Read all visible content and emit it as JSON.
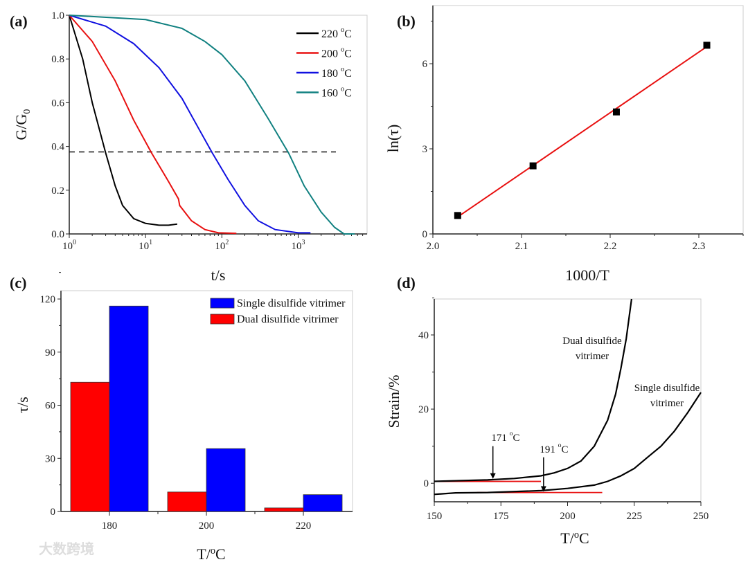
{
  "watermark": "大数跨境",
  "chart_data": [
    {
      "panel": "(a)",
      "type": "line",
      "xlabel": "t/s",
      "ylabel": "G/G0",
      "xscale": "log",
      "xlim": [
        1,
        8000
      ],
      "ylim": [
        0,
        1.0
      ],
      "xticks": [
        {
          "v": 1,
          "label": "10",
          "exp": "0"
        },
        {
          "v": 10,
          "label": "10",
          "exp": "1"
        },
        {
          "v": 100,
          "label": "10",
          "exp": "2"
        },
        {
          "v": 1000,
          "label": "10",
          "exp": "3"
        }
      ],
      "yticks": [
        0,
        0.2,
        0.4,
        0.6,
        0.8,
        1.0
      ],
      "ytick_labels": [
        "0.0",
        "0.2",
        "0.4",
        "0.6",
        "0.8",
        "1.0"
      ],
      "reference_line": {
        "y": 0.375,
        "style": "dashed"
      },
      "legend_position": "top-right",
      "series": [
        {
          "name": "220 °C",
          "color": "#000000",
          "x": [
            1,
            1.5,
            2,
            3,
            4,
            5,
            7,
            10,
            15,
            20,
            26
          ],
          "y": [
            1,
            0.8,
            0.6,
            0.37,
            0.22,
            0.13,
            0.07,
            0.048,
            0.04,
            0.04,
            0.045
          ]
        },
        {
          "name": "200 °C",
          "color": "#e81010",
          "x": [
            1,
            2,
            4,
            7,
            12,
            20,
            27,
            28,
            40,
            60,
            90,
            155
          ],
          "y": [
            1,
            0.88,
            0.7,
            0.52,
            0.37,
            0.24,
            0.16,
            0.13,
            0.06,
            0.02,
            0.005,
            0.003
          ]
        },
        {
          "name": "180 °C",
          "color": "#1010e0",
          "x": [
            1,
            3,
            7,
            15,
            30,
            50,
            75,
            120,
            200,
            300,
            500,
            1000,
            1450
          ],
          "y": [
            1,
            0.95,
            0.87,
            0.76,
            0.62,
            0.48,
            0.37,
            0.25,
            0.13,
            0.06,
            0.02,
            0.005,
            0.005
          ]
        },
        {
          "name": "160 °C",
          "color": "#108080",
          "x": [
            1,
            10,
            30,
            60,
            100,
            200,
            400,
            750,
            1200,
            2000,
            3000,
            4000,
            5500
          ],
          "y": [
            1,
            0.98,
            0.94,
            0.88,
            0.82,
            0.7,
            0.53,
            0.37,
            0.22,
            0.1,
            0.03,
            0.0,
            0.0
          ]
        }
      ]
    },
    {
      "panel": "(b)",
      "type": "scatter",
      "xlabel": "1000/T",
      "ylabel": "ln(τ)",
      "xlim": [
        2.0,
        2.35
      ],
      "ylim": [
        0,
        8.05
      ],
      "xticks": [
        2.0,
        2.1,
        2.2,
        2.3
      ],
      "xtick_labels": [
        "2.0",
        "2.1",
        "2.2",
        "2.3"
      ],
      "yticks": [
        0,
        3,
        6
      ],
      "ytick_labels": [
        "0",
        "3",
        "6"
      ],
      "points": {
        "x": [
          2.028,
          2.113,
          2.207,
          2.309
        ],
        "y": [
          0.65,
          2.4,
          4.3,
          6.65
        ],
        "color": "#000000"
      },
      "fit": {
        "x": [
          2.028,
          2.309
        ],
        "y": [
          0.6,
          6.6
        ],
        "color": "#e81010"
      }
    },
    {
      "panel": "(c)",
      "type": "bar",
      "xlabel": "T/°C",
      "ylabel": "τ/s",
      "categories": [
        "180",
        "200",
        "220"
      ],
      "ylim": [
        0,
        124.7
      ],
      "yticks": [
        0,
        30,
        60,
        90,
        120
      ],
      "ytick_labels": [
        "0",
        "30",
        "60",
        "90",
        "120"
      ],
      "legend_position": "top-right",
      "series": [
        {
          "name": "Dual disulfide vitrimer",
          "color": "#ff0000",
          "values": [
            73,
            11,
            2
          ]
        },
        {
          "name": "Single disulfide vitrimer",
          "color": "#0000ff",
          "values": [
            116,
            35.5,
            9.5
          ]
        }
      ]
    },
    {
      "panel": "(d)",
      "type": "line",
      "xlabel": "T/°C",
      "ylabel": "Strain/%",
      "xlim": [
        150,
        250
      ],
      "ylim": [
        -5,
        49.7
      ],
      "xticks": [
        150,
        175,
        200,
        225,
        250
      ],
      "xtick_labels": [
        "150",
        "175",
        "200",
        "225",
        "250"
      ],
      "yticks": [
        0,
        20,
        40
      ],
      "ytick_labels": [
        "0",
        "20",
        "40"
      ],
      "series": [
        {
          "name": "Dual disulfide vitrimer",
          "label_lines": [
            "Dual disulfide",
            "vitrimer"
          ],
          "color": "#000000",
          "x": [
            150,
            170,
            180,
            190,
            195,
            200,
            205,
            210,
            215,
            218,
            220,
            222,
            224
          ],
          "y": [
            0.5,
            0.9,
            1.3,
            2,
            2.8,
            4,
            6,
            10,
            17,
            24,
            31,
            39,
            50
          ]
        },
        {
          "name": "Single disulfide vitrimer",
          "label_lines": [
            "Single disulfide",
            "vitrimer"
          ],
          "color": "#000000",
          "x": [
            150,
            158,
            170,
            190,
            200,
            210,
            215,
            220,
            225,
            230,
            235,
            240,
            245,
            250
          ],
          "y": [
            -3,
            -2.6,
            -2.5,
            -2,
            -1.4,
            -0.5,
            0.5,
            2,
            4,
            7,
            10,
            14,
            19,
            24.5
          ]
        }
      ],
      "baselines": [
        {
          "x": [
            150,
            190
          ],
          "y": 0.5,
          "color": "#e81010"
        },
        {
          "x": [
            166,
            213
          ],
          "y": -2.5,
          "color": "#e81010"
        }
      ],
      "annotations": [
        {
          "text": "171 °C",
          "value": "171",
          "unit": "°C",
          "x": 172,
          "y_from": 10,
          "y_to": 1.2
        },
        {
          "text": "191 °C",
          "value": "191",
          "unit": "°C",
          "x": 191,
          "y_from": 7,
          "y_to": -2.3
        }
      ]
    }
  ]
}
